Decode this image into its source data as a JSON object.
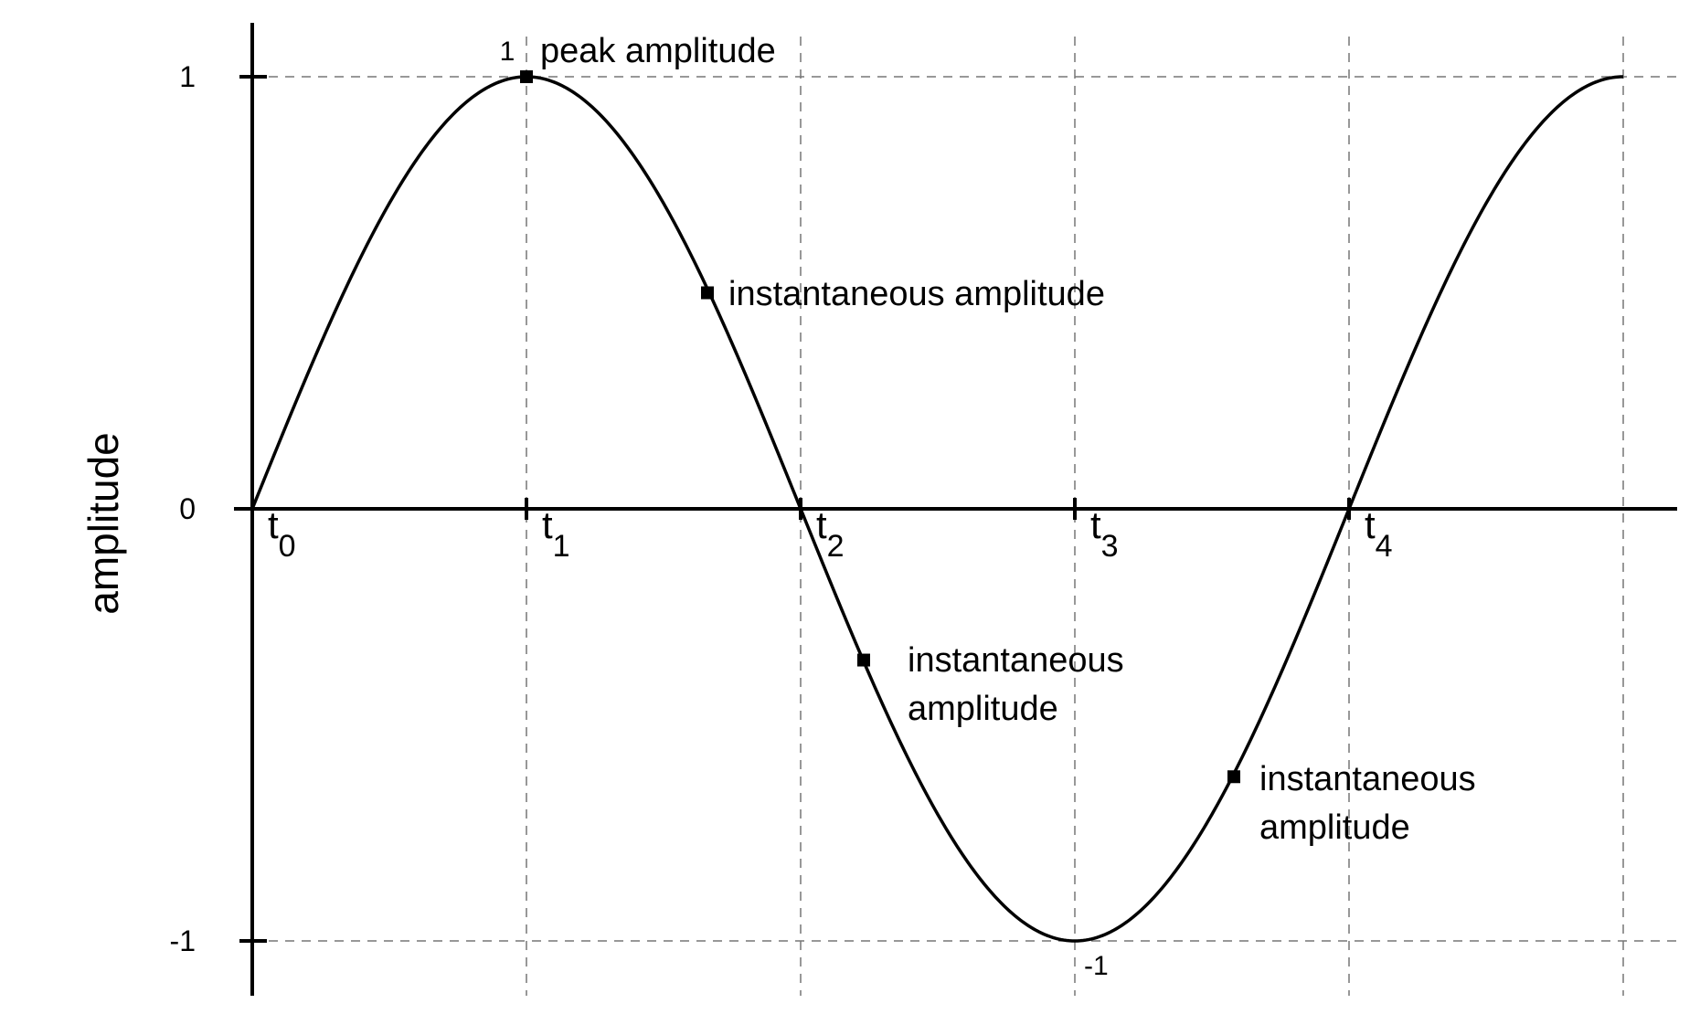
{
  "chart_data": {
    "type": "line",
    "title": "",
    "ylabel": "amplitude",
    "xlabel": "",
    "ylim": [
      -1,
      1
    ],
    "yticks": [
      {
        "value": 1,
        "label": "1"
      },
      {
        "value": 0,
        "label": "0"
      },
      {
        "value": -1,
        "label": "-1"
      }
    ],
    "xticks": [
      {
        "value": 0,
        "base": "t",
        "sub": "0"
      },
      {
        "value": 1,
        "base": "t",
        "sub": "1"
      },
      {
        "value": 2,
        "base": "t",
        "sub": "2"
      },
      {
        "value": 3,
        "base": "t",
        "sub": "3"
      },
      {
        "value": 4,
        "base": "t",
        "sub": "4"
      }
    ],
    "xlim": [
      0,
      5
    ],
    "grid": true,
    "series": [
      {
        "function": "sine",
        "x_start": 0,
        "x_end": 5,
        "period": 4,
        "amplitude": 1
      }
    ],
    "markers": [
      {
        "x": 1,
        "y": 1
      },
      {
        "x": 1.66,
        "y": 0.5
      },
      {
        "x": 2.23,
        "y": -0.35
      },
      {
        "x": 3.58,
        "y": -0.62
      }
    ],
    "annotations": {
      "peak_value": "1",
      "peak_text": "peak amplitude",
      "trough_value": "-1",
      "instantaneous_1": "instantaneous amplitude",
      "instantaneous_2_line1": "instantaneous",
      "instantaneous_2_line2": "amplitude",
      "instantaneous_3_line1": "instantaneous",
      "instantaneous_3_line2": "amplitude"
    }
  }
}
